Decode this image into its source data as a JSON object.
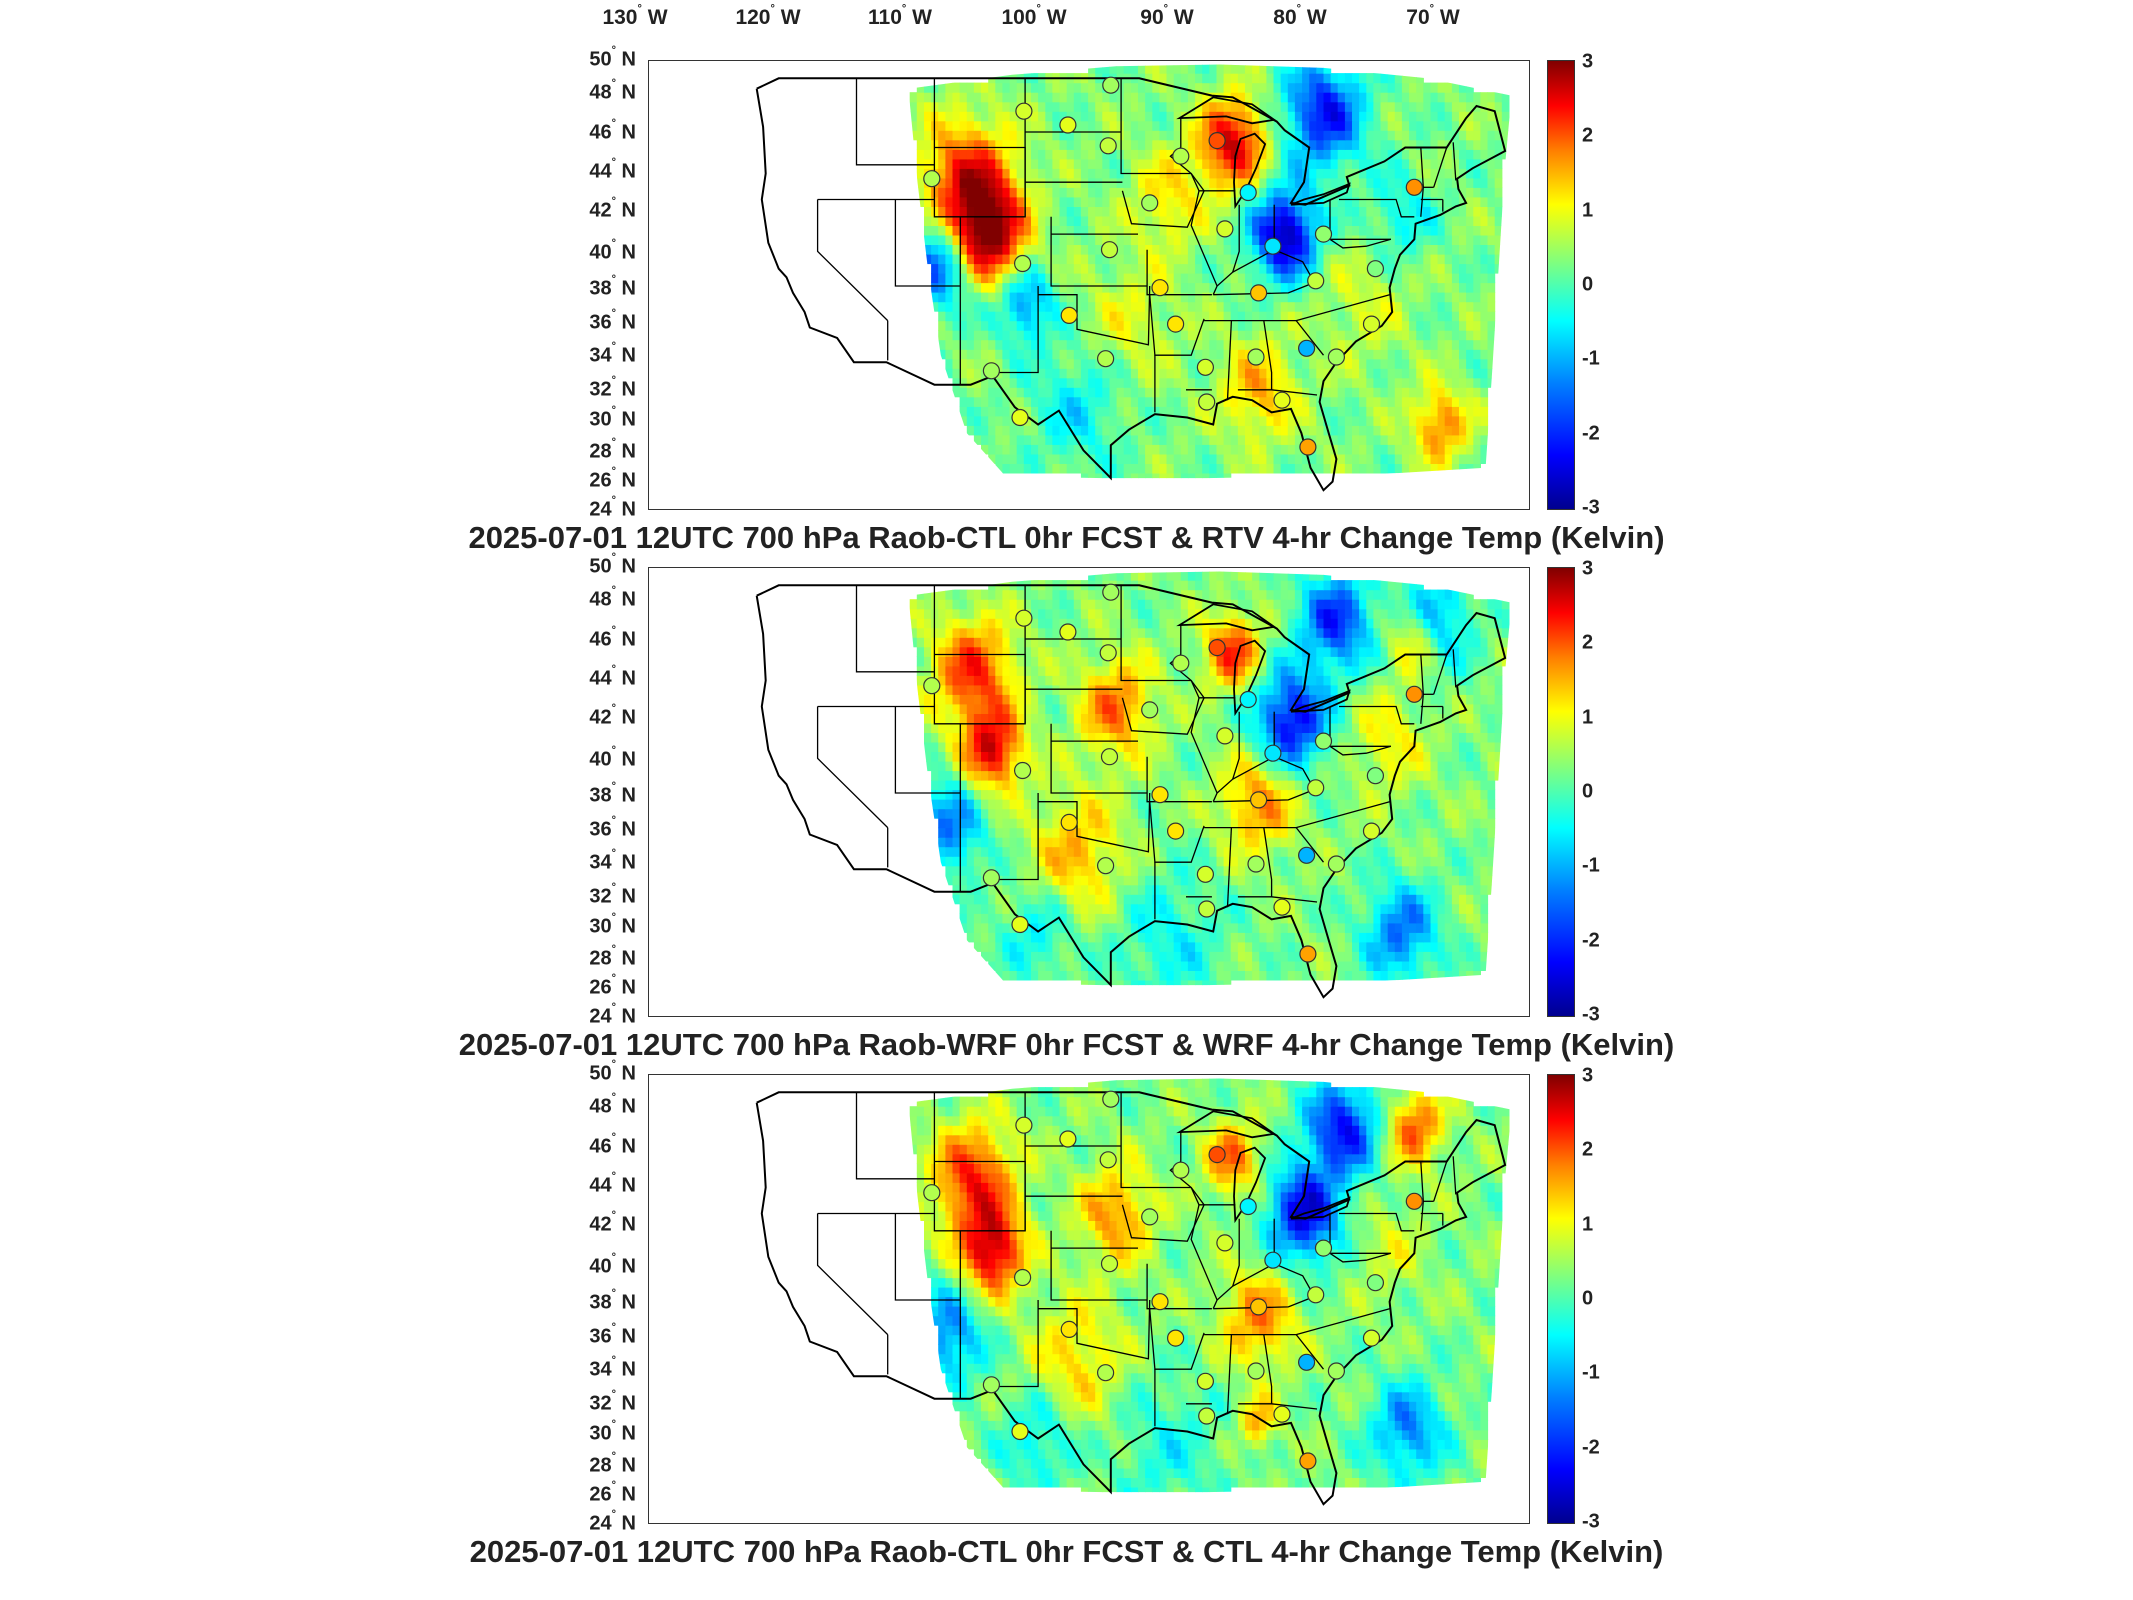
{
  "lon_labels": [
    {
      "deg": "130",
      "hem": "W"
    },
    {
      "deg": "120",
      "hem": "W"
    },
    {
      "deg": "110",
      "hem": "W"
    },
    {
      "deg": "100",
      "hem": "W"
    },
    {
      "deg": "90",
      "hem": "W"
    },
    {
      "deg": "80",
      "hem": "W"
    },
    {
      "deg": "70",
      "hem": "W"
    }
  ],
  "lat_labels": [
    {
      "deg": "50",
      "hem": "N"
    },
    {
      "deg": "48",
      "hem": "N"
    },
    {
      "deg": "46",
      "hem": "N"
    },
    {
      "deg": "44",
      "hem": "N"
    },
    {
      "deg": "42",
      "hem": "N"
    },
    {
      "deg": "40",
      "hem": "N"
    },
    {
      "deg": "38",
      "hem": "N"
    },
    {
      "deg": "36",
      "hem": "N"
    },
    {
      "deg": "34",
      "hem": "N"
    },
    {
      "deg": "32",
      "hem": "N"
    },
    {
      "deg": "30",
      "hem": "N"
    },
    {
      "deg": "28",
      "hem": "N"
    },
    {
      "deg": "26",
      "hem": "N"
    },
    {
      "deg": "24",
      "hem": "N"
    }
  ],
  "colorbar": {
    "range": [
      -3,
      3
    ],
    "ticks": [
      "3",
      "2",
      "1",
      "0",
      "-1",
      "-2",
      "-3"
    ],
    "colormap": "jet"
  },
  "panels": [
    {
      "title": "2025-07-01 12UTC 700 hPa Raob-CTL 0hr FCST & RTV 4-hr Change Temp (Kelvin)"
    },
    {
      "title": "2025-07-01 12UTC 700 hPa Raob-WRF 0hr FCST & WRF 4-hr Change Temp (Kelvin)"
    },
    {
      "title": "2025-07-01 12UTC 700 hPa Raob-CTL 0hr FCST & CTL 4-hr Change Temp (Kelvin)"
    }
  ],
  "station_markers": [
    {
      "lon": -97.4,
      "lat": 48.6,
      "value": 0.2
    },
    {
      "lon": -104.1,
      "lat": 47.1,
      "value": 0.5
    },
    {
      "lon": -100.7,
      "lat": 46.3,
      "value": 0.6
    },
    {
      "lon": -97.6,
      "lat": 45.1,
      "value": 0.4
    },
    {
      "lon": -111.2,
      "lat": 43.2,
      "value": 0.3
    },
    {
      "lon": -89.2,
      "lat": 45.4,
      "value": 1.8
    },
    {
      "lon": -92.0,
      "lat": 44.5,
      "value": 0.3
    },
    {
      "lon": -86.8,
      "lat": 42.4,
      "value": -0.8
    },
    {
      "lon": -74.0,
      "lat": 42.7,
      "value": 1.4
    },
    {
      "lon": -94.4,
      "lat": 41.8,
      "value": 0.2
    },
    {
      "lon": -88.6,
      "lat": 40.3,
      "value": 0.5
    },
    {
      "lon": -84.9,
      "lat": 39.3,
      "value": -0.9
    },
    {
      "lon": -81.0,
      "lat": 40.0,
      "value": 0.1
    },
    {
      "lon": -104.2,
      "lat": 38.3,
      "value": 0.3
    },
    {
      "lon": -97.5,
      "lat": 39.1,
      "value": 0.4
    },
    {
      "lon": -93.6,
      "lat": 36.9,
      "value": 0.9
    },
    {
      "lon": -86.0,
      "lat": 36.6,
      "value": 1.1
    },
    {
      "lon": -81.6,
      "lat": 37.3,
      "value": 0.4
    },
    {
      "lon": -77.0,
      "lat": 38.0,
      "value": 0.0
    },
    {
      "lon": -100.6,
      "lat": 35.3,
      "value": 0.9
    },
    {
      "lon": -92.4,
      "lat": 34.8,
      "value": 0.9
    },
    {
      "lon": -77.3,
      "lat": 34.8,
      "value": 0.5
    },
    {
      "lon": -106.6,
      "lat": 32.1,
      "value": 0.2
    },
    {
      "lon": -97.8,
      "lat": 32.8,
      "value": 0.3
    },
    {
      "lon": -90.1,
      "lat": 32.3,
      "value": 0.5
    },
    {
      "lon": -86.2,
      "lat": 32.9,
      "value": 0.2
    },
    {
      "lon": -82.3,
      "lat": 33.4,
      "value": -1.2
    },
    {
      "lon": -80.0,
      "lat": 32.9,
      "value": 0.2
    },
    {
      "lon": -90.0,
      "lat": 30.3,
      "value": 0.4
    },
    {
      "lon": -84.2,
      "lat": 30.4,
      "value": 0.6
    },
    {
      "lon": -104.4,
      "lat": 29.4,
      "value": 0.6
    },
    {
      "lon": -82.2,
      "lat": 27.7,
      "value": 1.3
    }
  ]
}
